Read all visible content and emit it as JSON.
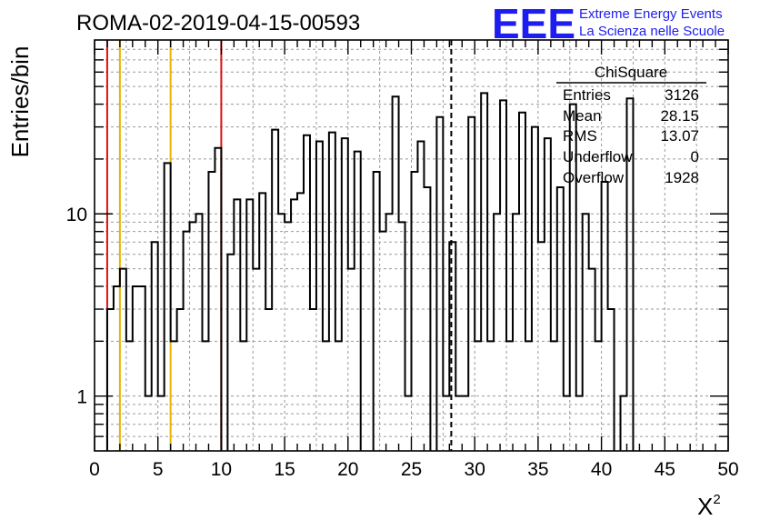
{
  "chart_data": {
    "type": "histogram-step",
    "title": "ROMA-02-2019-04-15-00593",
    "xlabel": "X",
    "xlabel_sup": "2",
    "ylabel": "Entries/bin",
    "xlim": [
      0,
      50
    ],
    "ylim": [
      0.5,
      90
    ],
    "y_scale": "log",
    "grid": true,
    "bin_width": 0.5,
    "x_ticks": [
      {
        "value": 0,
        "label": "0"
      },
      {
        "value": 5,
        "label": "5"
      },
      {
        "value": 10,
        "label": "10"
      },
      {
        "value": 15,
        "label": "15"
      },
      {
        "value": 20,
        "label": "20"
      },
      {
        "value": 25,
        "label": "25"
      },
      {
        "value": 30,
        "label": "30"
      },
      {
        "value": 35,
        "label": "35"
      },
      {
        "value": 40,
        "label": "40"
      },
      {
        "value": 45,
        "label": "45"
      },
      {
        "value": 50,
        "label": "50"
      }
    ],
    "y_ticks": [
      {
        "value": 1,
        "label": "1"
      },
      {
        "value": 10,
        "label": "10"
      }
    ],
    "bin_values": [
      0,
      0,
      3,
      4,
      5,
      2,
      4,
      4,
      1,
      7,
      1,
      19,
      2,
      3,
      8,
      9,
      10,
      2,
      17,
      23,
      0,
      6,
      12,
      2,
      12,
      5,
      13,
      3,
      29,
      10,
      9,
      12,
      13,
      27,
      3,
      25,
      2,
      28,
      2,
      26,
      5,
      22,
      0,
      0,
      17,
      8,
      10,
      44,
      9,
      1,
      17,
      25,
      14,
      0.2,
      34,
      1,
      7,
      1,
      1,
      34,
      2,
      46,
      2,
      10,
      42,
      2,
      10,
      36,
      2,
      30,
      7,
      26,
      2,
      14,
      1,
      40,
      1,
      10,
      5,
      2,
      15,
      3,
      0,
      1,
      43
    ],
    "reference_lines": [
      {
        "x": 1,
        "color": "#dd1111"
      },
      {
        "x": 2,
        "color": "#e8b400"
      },
      {
        "x": 6,
        "color": "#e8b400"
      },
      {
        "x": 10,
        "color": "#dd1111"
      }
    ],
    "mean_line": {
      "x": 28.15,
      "style": "dashed",
      "color": "#000000"
    },
    "stats_box": {
      "title": "ChiSquare",
      "rows": [
        {
          "label": "Entries",
          "value": "3126"
        },
        {
          "label": "Mean",
          "value": "28.15"
        },
        {
          "label": "RMS",
          "value": "13.07"
        },
        {
          "label": "Underflow",
          "value": "0"
        },
        {
          "label": "Overflow",
          "value": "1928"
        }
      ]
    }
  },
  "logo": {
    "mark": "EEE",
    "line1": "Extreme Energy Events",
    "line2": "La Scienza nelle Scuole",
    "color": "#1d1df0"
  }
}
